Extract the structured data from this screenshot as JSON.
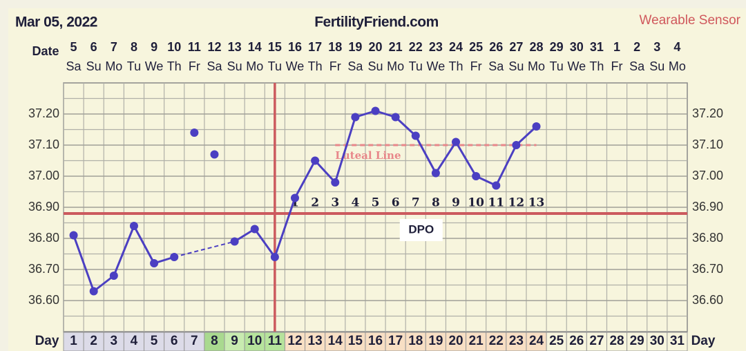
{
  "chart_data": {
    "type": "line",
    "title": "Mar 05, 2022",
    "subtitle": "FertilityFriend.com",
    "annotation": "Wearable Sensor",
    "date_row_label": "Date",
    "day_row_label": "Day",
    "categories": [
      1,
      2,
      3,
      4,
      5,
      6,
      7,
      8,
      9,
      10,
      11,
      12,
      13,
      14,
      15,
      16,
      17,
      18,
      19,
      20,
      21,
      22,
      23,
      24,
      25,
      26,
      27,
      28,
      29,
      30,
      31
    ],
    "dates": [
      "5",
      "6",
      "7",
      "8",
      "9",
      "10",
      "11",
      "12",
      "13",
      "14",
      "15",
      "16",
      "17",
      "18",
      "19",
      "20",
      "21",
      "22",
      "23",
      "24",
      "25",
      "26",
      "27",
      "28",
      "29",
      "30",
      "31",
      "1",
      "2",
      "3",
      "4"
    ],
    "weekdays": [
      "Sa",
      "Su",
      "Mo",
      "Tu",
      "We",
      "Th",
      "Fr",
      "Sa",
      "Su",
      "Mo",
      "Tu",
      "We",
      "Th",
      "Fr",
      "Sa",
      "Su",
      "Mo",
      "Tu",
      "We",
      "Th",
      "Fr",
      "Sa",
      "Su",
      "Mo",
      "Tu",
      "We",
      "Th",
      "Fr",
      "Sa",
      "Su",
      "Mo"
    ],
    "day_cell_colors": [
      "#dcdbe8",
      "#dcdbe8",
      "#dcdbe8",
      "#dcdbe8",
      "#dcdbe8",
      "#dcdbe8",
      "#dcdbe8",
      "#a9d98f",
      "#c8ebb0",
      "#b6e39c",
      "#b6e39c",
      "#f8dfc4",
      "#f8dfc4",
      "#f8dfc4",
      "#f8dfc4",
      "#f8dfc4",
      "#f8dfc4",
      "#f8dfc4",
      "#f8dfc4",
      "#f8dfc4",
      "#f8dfc4",
      "#f8dfc4",
      "#f8dfc4",
      "#f8dfc4",
      "#f7f5dd",
      "#f7f5dd",
      "#f7f5dd",
      "#f7f5dd",
      "#f7f5dd",
      "#f7f5dd",
      "#f7f5dd"
    ],
    "series": [
      {
        "color": "#4b3fc2",
        "connect": true,
        "values": [
          36.81,
          36.63,
          36.68,
          36.84,
          36.72,
          36.74,
          null,
          null,
          36.79,
          36.83,
          36.74,
          36.93,
          37.05,
          36.98,
          37.19,
          37.21,
          37.19,
          37.13,
          37.01,
          37.11,
          37.0,
          36.97,
          37.1,
          37.16,
          null,
          null,
          null,
          null,
          null,
          null,
          null
        ]
      },
      {
        "color": "#4b3fc2",
        "connect": false,
        "values": [
          null,
          null,
          null,
          null,
          null,
          null,
          37.14,
          37.07,
          null,
          null,
          null,
          null,
          null,
          null,
          null,
          null,
          null,
          null,
          null,
          null,
          null,
          null,
          null,
          null,
          null,
          null,
          null,
          null,
          null,
          null,
          null
        ]
      }
    ],
    "ylim": [
      36.5,
      37.3
    ],
    "yticks": [
      {
        "value": 36.6,
        "label": "36.60"
      },
      {
        "value": 36.7,
        "label": "36.70"
      },
      {
        "value": 36.8,
        "label": "36.80"
      },
      {
        "value": 36.9,
        "label": "36.90"
      },
      {
        "value": 37.0,
        "label": "37.00"
      },
      {
        "value": 37.1,
        "label": "37.10"
      },
      {
        "value": 37.2,
        "label": "37.20"
      }
    ],
    "minor_gridlines": [
      36.55,
      36.65,
      36.75,
      36.85,
      36.95,
      37.05,
      37.15,
      37.25
    ],
    "grid": true,
    "coverline": {
      "value": 36.88,
      "color": "#cc5a5e"
    },
    "ovulation_day": 11,
    "luteal_line": {
      "value": 37.1,
      "from_day": 14,
      "to_day": 24,
      "label": "Luteal Line",
      "color": "#e8878a"
    },
    "dpo": [
      null,
      null,
      null,
      null,
      null,
      null,
      null,
      null,
      null,
      null,
      null,
      1,
      2,
      3,
      4,
      5,
      6,
      7,
      8,
      9,
      10,
      11,
      12,
      13,
      null,
      null,
      null,
      null,
      null,
      null,
      null
    ],
    "dpo_label": "DPO"
  }
}
